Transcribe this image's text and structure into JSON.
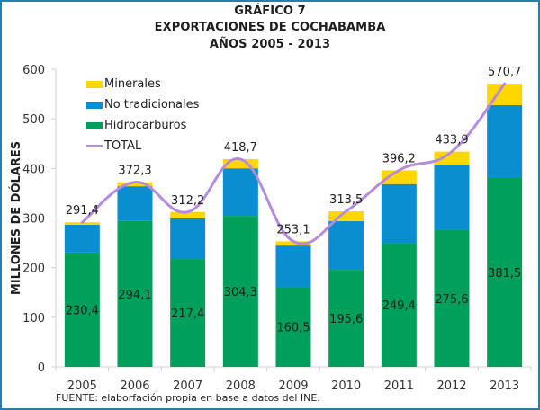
{
  "chart_data": {
    "type": "bar",
    "stacked": true,
    "title": "GRÁFICO 7",
    "subtitle_1": "EXPORTACIONES DE COCHABAMBA",
    "subtitle_2": "AÑOS 2005 - 2013",
    "xlabel": "",
    "ylabel": "MILLONES DE DÓLARES",
    "ylim": [
      0,
      600
    ],
    "yticks": [
      0,
      100,
      200,
      300,
      400,
      500,
      600
    ],
    "grid": false,
    "legend_position": "top-left",
    "categories": [
      "2005",
      "2006",
      "2007",
      "2008",
      "2009",
      "2010",
      "2011",
      "2012",
      "2013"
    ],
    "series": [
      {
        "name": "Hidrocarburos",
        "type": "bar",
        "color": "#00a05a",
        "values": [
          230.4,
          294.1,
          217.4,
          304.3,
          160.5,
          195.6,
          249.4,
          275.6,
          381.5
        ],
        "labels": [
          "230,4",
          "294,1",
          "217,4",
          "304,3",
          "160,5",
          "195,6",
          "249,4",
          "275,6",
          "381,5"
        ]
      },
      {
        "name": "No tradicionales",
        "type": "bar",
        "color": "#0a8ecf",
        "values": [
          56,
          70,
          82,
          96,
          84,
          98,
          119,
          132,
          146
        ]
      },
      {
        "name": "Minerales",
        "type": "bar",
        "color": "#ffd700",
        "values": [
          5,
          8.2,
          12.8,
          18.4,
          8.6,
          19.9,
          27.8,
          26.3,
          43.2
        ]
      },
      {
        "name": "TOTAL",
        "type": "line",
        "color": "#b58be0",
        "values": [
          291.4,
          372.3,
          312.2,
          418.7,
          253.1,
          313.5,
          396.2,
          433.9,
          570.7
        ],
        "labels": [
          "291,4",
          "372,3",
          "312,2",
          "418,7",
          "253,1",
          "313,5",
          "396,2",
          "433,9",
          "570,7"
        ]
      }
    ],
    "legend": [
      "Minerales",
      "No tradicionales",
      "Hidrocarburos",
      "TOTAL"
    ],
    "source": "FUENTE: elaborfación propia en base a datos del INE."
  }
}
